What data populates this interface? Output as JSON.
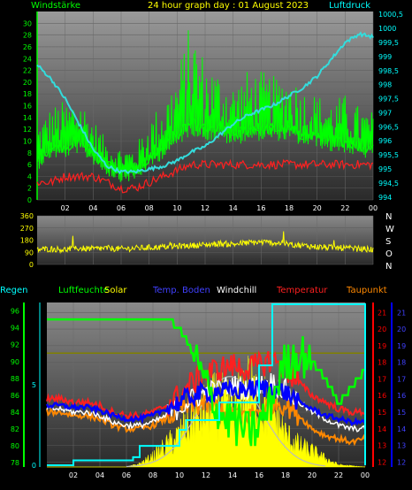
{
  "chart_data": [
    {
      "type": "line",
      "title": "24 hour graph day : 01 August 2023",
      "left_label": "Windstärke",
      "right_label": "Luftdruck",
      "x_ticks": [
        "02",
        "04",
        "06",
        "08",
        "10",
        "12",
        "14",
        "16",
        "18",
        "20",
        "22",
        "00"
      ],
      "left_ticks": [
        "0",
        "2",
        "4",
        "6",
        "8",
        "10",
        "12",
        "14",
        "16",
        "18",
        "20",
        "22",
        "24",
        "26",
        "28",
        "30"
      ],
      "right_ticks": [
        "994",
        "994,5",
        "995",
        "995,5",
        "996",
        "996,5",
        "997",
        "997,5",
        "998",
        "998,5",
        "999",
        "999,5",
        "1000",
        "1000,5"
      ],
      "ylim_left": [
        0,
        32
      ],
      "ylim_right": [
        993.9,
        1000.6
      ],
      "colors": {
        "wind": "#00ff00",
        "gust": "#ff2020",
        "pressure": "#33dddd",
        "axis": "#00ff00",
        "axis_right": "#00ffff"
      },
      "pressure": {
        "x": [
          0,
          1,
          2,
          3,
          4,
          5,
          6,
          7,
          8,
          9,
          10,
          11,
          12,
          13,
          14,
          15,
          16,
          17,
          18,
          19,
          20,
          21,
          22,
          23,
          24
        ],
        "y": [
          998.7,
          998.2,
          997.5,
          996.6,
          995.7,
          995.1,
          994.9,
          994.9,
          995.0,
          995.1,
          995.3,
          995.6,
          995.8,
          996.2,
          996.6,
          996.9,
          997.1,
          997.3,
          997.6,
          997.9,
          998.3,
          998.9,
          999.5,
          999.8,
          999.7
        ]
      },
      "wind_avg": {
        "x": [
          0,
          1,
          2,
          3,
          4,
          5,
          6,
          7,
          8,
          9,
          10,
          11,
          12,
          13,
          14,
          15,
          16,
          17,
          18,
          19,
          20,
          21,
          22,
          23,
          24
        ],
        "y": [
          7,
          9,
          9,
          10,
          8,
          6,
          5,
          5,
          7,
          9,
          11,
          13,
          12,
          12,
          11,
          12,
          12,
          12,
          12,
          11,
          11,
          10,
          10,
          9,
          9
        ]
      },
      "wind_max": {
        "x": [
          0,
          1,
          2,
          3,
          4,
          5,
          6,
          7,
          8,
          9,
          10,
          11,
          12,
          13,
          14,
          15,
          16,
          17,
          18,
          19,
          20,
          21,
          22,
          23,
          24
        ],
        "y": [
          13,
          16,
          17,
          18,
          14,
          10,
          9,
          9,
          14,
          17,
          22,
          31,
          24,
          22,
          20,
          22,
          22,
          21,
          22,
          19,
          18,
          17,
          18,
          16,
          15
        ]
      },
      "gust_line": {
        "x": [
          0,
          1,
          2,
          3,
          4,
          5,
          6,
          7,
          8,
          9,
          10,
          11,
          12,
          13,
          14,
          15,
          16,
          17,
          18,
          19,
          20,
          21,
          22,
          23,
          24
        ],
        "y": [
          3,
          3,
          4,
          4,
          4,
          3,
          2,
          2,
          3,
          4,
          5,
          6,
          6,
          6,
          6,
          6,
          6,
          6,
          6,
          6,
          6,
          6,
          6,
          6,
          6
        ]
      }
    },
    {
      "type": "line",
      "ylim": [
        0,
        360
      ],
      "y_ticks": [
        "0",
        "90",
        "180",
        "270",
        "360"
      ],
      "right_labels": [
        "N",
        "W",
        "S",
        "O",
        "N"
      ],
      "colors": {
        "direction": "#ffff00"
      },
      "direction": {
        "x": [
          0,
          1,
          2,
          3,
          4,
          5,
          6,
          7,
          8,
          9,
          10,
          11,
          12,
          13,
          14,
          15,
          16,
          17,
          18,
          19,
          20,
          21,
          22,
          23,
          24
        ],
        "y": [
          110,
          115,
          110,
          120,
          115,
          120,
          115,
          120,
          125,
          130,
          135,
          140,
          145,
          155,
          150,
          160,
          165,
          160,
          150,
          140,
          130,
          125,
          120,
          115,
          110
        ]
      }
    },
    {
      "type": "line",
      "labels": {
        "rain": "Regen",
        "humidity": "Luftfeuchte",
        "solar": "Solar",
        "soil": "Temp. Boden",
        "windchill": "Windchill",
        "temperature": "Temperatur",
        "dewpoint": "Taupunkt"
      },
      "colors": {
        "rain": "#00ffff",
        "humidity": "#00ff00",
        "solar": "#ffff00",
        "soil": "#0000ff",
        "windchill": "#ffffff",
        "temperature": "#ff2020",
        "dewpoint": "#ff8800",
        "olive": "#808000",
        "grey_curve": "#bbbbbb",
        "axis_rain": "#00ffff",
        "axis_hum": "#00ff00",
        "axis_temp": "#ff0000",
        "axis_temp2": "#0000ff"
      },
      "x_ticks": [
        "02",
        "04",
        "06",
        "08",
        "10",
        "12",
        "14",
        "16",
        "18",
        "20",
        "22",
        "00"
      ],
      "rain_ticks": [
        "0",
        "5"
      ],
      "humidity_ticks": [
        "78",
        "80",
        "82",
        "84",
        "86",
        "88",
        "90",
        "92",
        "94",
        "96"
      ],
      "temp_ticks": [
        "12",
        "13",
        "14",
        "15",
        "16",
        "17",
        "18",
        "19",
        "20",
        "21"
      ],
      "temp_ticks_right": [
        "12",
        "13",
        "14",
        "15",
        "16",
        "17",
        "18",
        "19",
        "20",
        "21"
      ],
      "ylim_rain": [
        0,
        10
      ],
      "ylim_humidity": [
        77.5,
        97
      ],
      "ylim_temp": [
        11.7,
        21.6
      ],
      "rain_cumulative": {
        "x": [
          0,
          1,
          2,
          5,
          6.5,
          7,
          9,
          10,
          10.5,
          11,
          13,
          15,
          16,
          16.5,
          17,
          23,
          24
        ],
        "y": [
          0,
          0,
          0.3,
          0.3,
          0.5,
          1.2,
          1.2,
          2.2,
          2.8,
          2.8,
          3.9,
          3.9,
          6.2,
          6.2,
          10,
          10,
          0
        ]
      },
      "humidity": {
        "x": [
          0,
          1,
          2,
          3,
          4,
          5,
          6,
          7,
          8,
          9,
          10,
          11,
          12,
          13,
          14,
          15,
          16,
          17,
          18,
          19,
          20,
          21,
          22,
          23,
          24
        ],
        "y": [
          95,
          95,
          95,
          95,
          95,
          95,
          95,
          95,
          95,
          95,
          94,
          91,
          87,
          84,
          83,
          82,
          82,
          86,
          90,
          91,
          90,
          88,
          85,
          87,
          89
        ]
      },
      "temperature": {
        "x": [
          0,
          1,
          2,
          3,
          4,
          5,
          6,
          7,
          8,
          9,
          10,
          11,
          12,
          13,
          14,
          15,
          16,
          17,
          18,
          19,
          20,
          21,
          22,
          23,
          24
        ],
        "y": [
          15.8,
          15.8,
          15.6,
          15.6,
          15.4,
          15.0,
          14.8,
          14.8,
          15.0,
          15.4,
          16.0,
          16.8,
          17.4,
          17.6,
          17.8,
          17.6,
          17.8,
          18.2,
          17.6,
          16.8,
          16.0,
          15.6,
          15.2,
          15.0,
          15.0
        ]
      },
      "soil": {
        "x": [
          0,
          1,
          2,
          3,
          4,
          5,
          6,
          7,
          8,
          9,
          10,
          11,
          12,
          13,
          14,
          15,
          16,
          17,
          18,
          19,
          20,
          21,
          22,
          23,
          24
        ],
        "y": [
          15.4,
          15.4,
          15.3,
          15.3,
          15.1,
          14.8,
          14.6,
          14.6,
          14.8,
          15.2,
          15.6,
          16.0,
          16.2,
          16.3,
          16.2,
          16.4,
          16.4,
          16.5,
          16.2,
          15.6,
          15.2,
          14.8,
          14.6,
          14.4,
          14.4
        ]
      },
      "windchill": {
        "x": [
          0,
          1,
          2,
          3,
          4,
          5,
          6,
          7,
          8,
          9,
          10,
          11,
          12,
          13,
          14,
          15,
          16,
          17,
          18,
          19,
          20,
          21,
          22,
          23,
          24
        ],
        "y": [
          15.2,
          15.2,
          15.0,
          15.0,
          14.8,
          14.4,
          14.2,
          14.2,
          14.4,
          14.8,
          15.3,
          15.8,
          16.2,
          16.4,
          16.6,
          16.4,
          16.6,
          16.8,
          16.3,
          15.6,
          15.0,
          14.6,
          14.2,
          14.0,
          14.0
        ]
      },
      "dewpoint": {
        "x": [
          0,
          1,
          2,
          3,
          4,
          5,
          6,
          7,
          8,
          9,
          10,
          11,
          12,
          13,
          14,
          15,
          16,
          17,
          18,
          19,
          20,
          21,
          22,
          23,
          24
        ],
        "y": [
          15.0,
          15.0,
          14.8,
          14.8,
          14.6,
          14.2,
          14.0,
          14.0,
          14.2,
          14.6,
          15.2,
          15.4,
          15.5,
          15.2,
          15.0,
          14.8,
          15.0,
          15.6,
          15.5,
          14.8,
          14.0,
          13.6,
          13.4,
          13.2,
          13.4
        ]
      },
      "solar_envelope": {
        "x": [
          0,
          4,
          6,
          7,
          8,
          9,
          10,
          11,
          12,
          13,
          14,
          15,
          16,
          17,
          18,
          19,
          20,
          21,
          22,
          24
        ],
        "y": [
          0,
          0,
          0,
          0.03,
          0.1,
          0.2,
          0.3,
          0.45,
          0.55,
          0.6,
          0.5,
          0.75,
          0.6,
          0.55,
          0.3,
          0.2,
          0.15,
          0.08,
          0.02,
          0
        ]
      },
      "olive_line": {
        "x": [
          0,
          24
        ],
        "y": [
          91,
          91
        ]
      }
    }
  ]
}
